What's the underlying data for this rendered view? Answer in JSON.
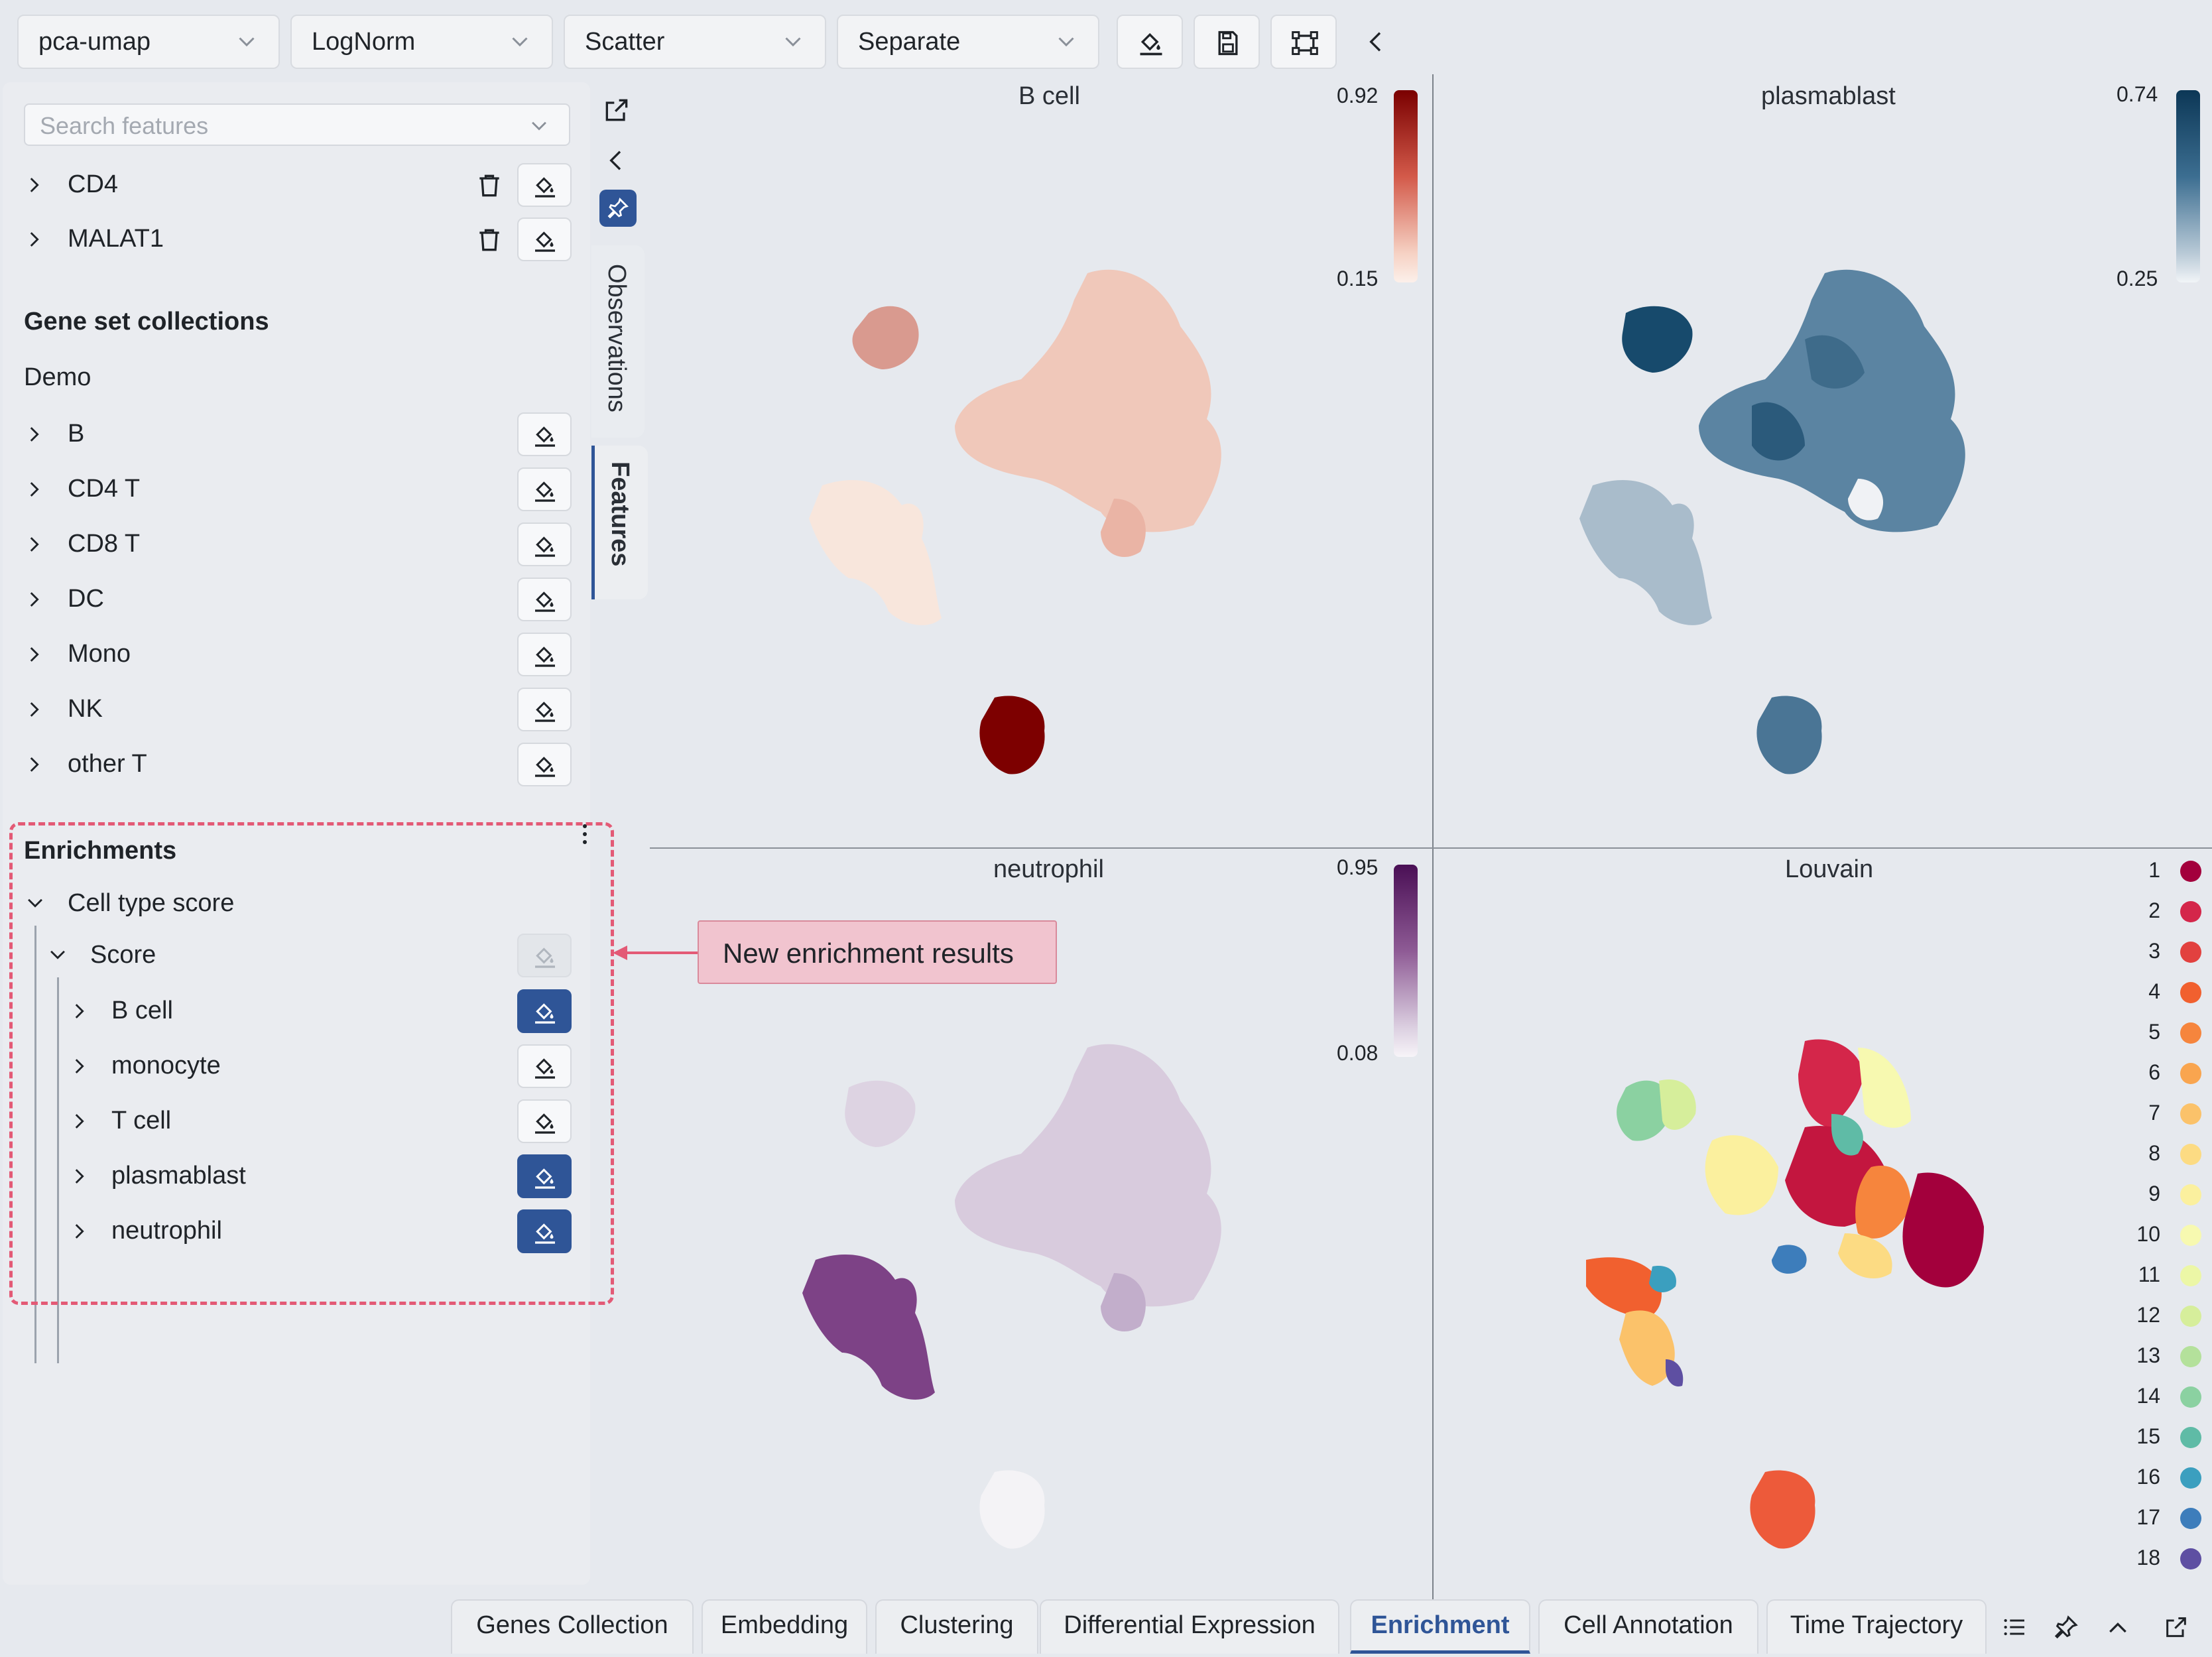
{
  "toolbar": {
    "embedding_select": "pca-umap",
    "norm_select": "LogNorm",
    "plot_type_select": "Scatter",
    "layout_select": "Separate"
  },
  "features": {
    "search_placeholder": "Search features",
    "items": [
      {
        "label": "CD4"
      },
      {
        "label": "MALAT1"
      }
    ]
  },
  "gene_sets": {
    "heading": "Gene set collections",
    "collection": "Demo",
    "items": [
      {
        "label": "B"
      },
      {
        "label": "CD4 T"
      },
      {
        "label": "CD8 T"
      },
      {
        "label": "DC"
      },
      {
        "label": "Mono"
      },
      {
        "label": "NK"
      },
      {
        "label": "other T"
      }
    ]
  },
  "enrichments": {
    "heading": "Enrichments",
    "group": "Cell type score",
    "subgroup": "Score",
    "items": [
      {
        "label": "B cell",
        "active": true
      },
      {
        "label": "monocyte",
        "active": false
      },
      {
        "label": "T cell",
        "active": false
      },
      {
        "label": "plasmablast",
        "active": true
      },
      {
        "label": "neutrophil",
        "active": true
      }
    ]
  },
  "side_tabs": {
    "observations": "Observations",
    "features": "Features"
  },
  "callout": "New enrichment results",
  "plots": [
    {
      "title": "B cell",
      "max": "0.92",
      "min": "0.15",
      "colormap": "reds",
      "color": "#8b0000"
    },
    {
      "title": "plasmablast",
      "max": "0.74",
      "min": "0.25",
      "colormap": "blues",
      "color": "#0d3b5c"
    },
    {
      "title": "neutrophil",
      "max": "0.95",
      "min": "0.08",
      "colormap": "purples",
      "color": "#5a1a5e"
    },
    {
      "title": "Louvain",
      "colormap": "categorical"
    }
  ],
  "louvain_legend": {
    "labels": [
      "1",
      "2",
      "3",
      "4",
      "5",
      "6",
      "7",
      "8",
      "9",
      "10",
      "11",
      "12",
      "13",
      "14",
      "15",
      "16",
      "17",
      "18"
    ],
    "colors": [
      "#a3003c",
      "#d4264a",
      "#e2413f",
      "#f1602f",
      "#f6853d",
      "#f9a54f",
      "#fbc26a",
      "#fcdb83",
      "#fbf09e",
      "#f7f9b0",
      "#ecf7a6",
      "#d6ee9b",
      "#b4e19b",
      "#8bd1a1",
      "#5fbba6",
      "#3b9fbf",
      "#3d7dbb",
      "#5e4fa2"
    ]
  },
  "bottom_tabs": [
    "Genes Collection",
    "Embedding",
    "Clustering",
    "Differential Expression",
    "Enrichment",
    "Cell Annotation",
    "Time Trajectory"
  ],
  "active_bottom_tab": "Enrichment"
}
